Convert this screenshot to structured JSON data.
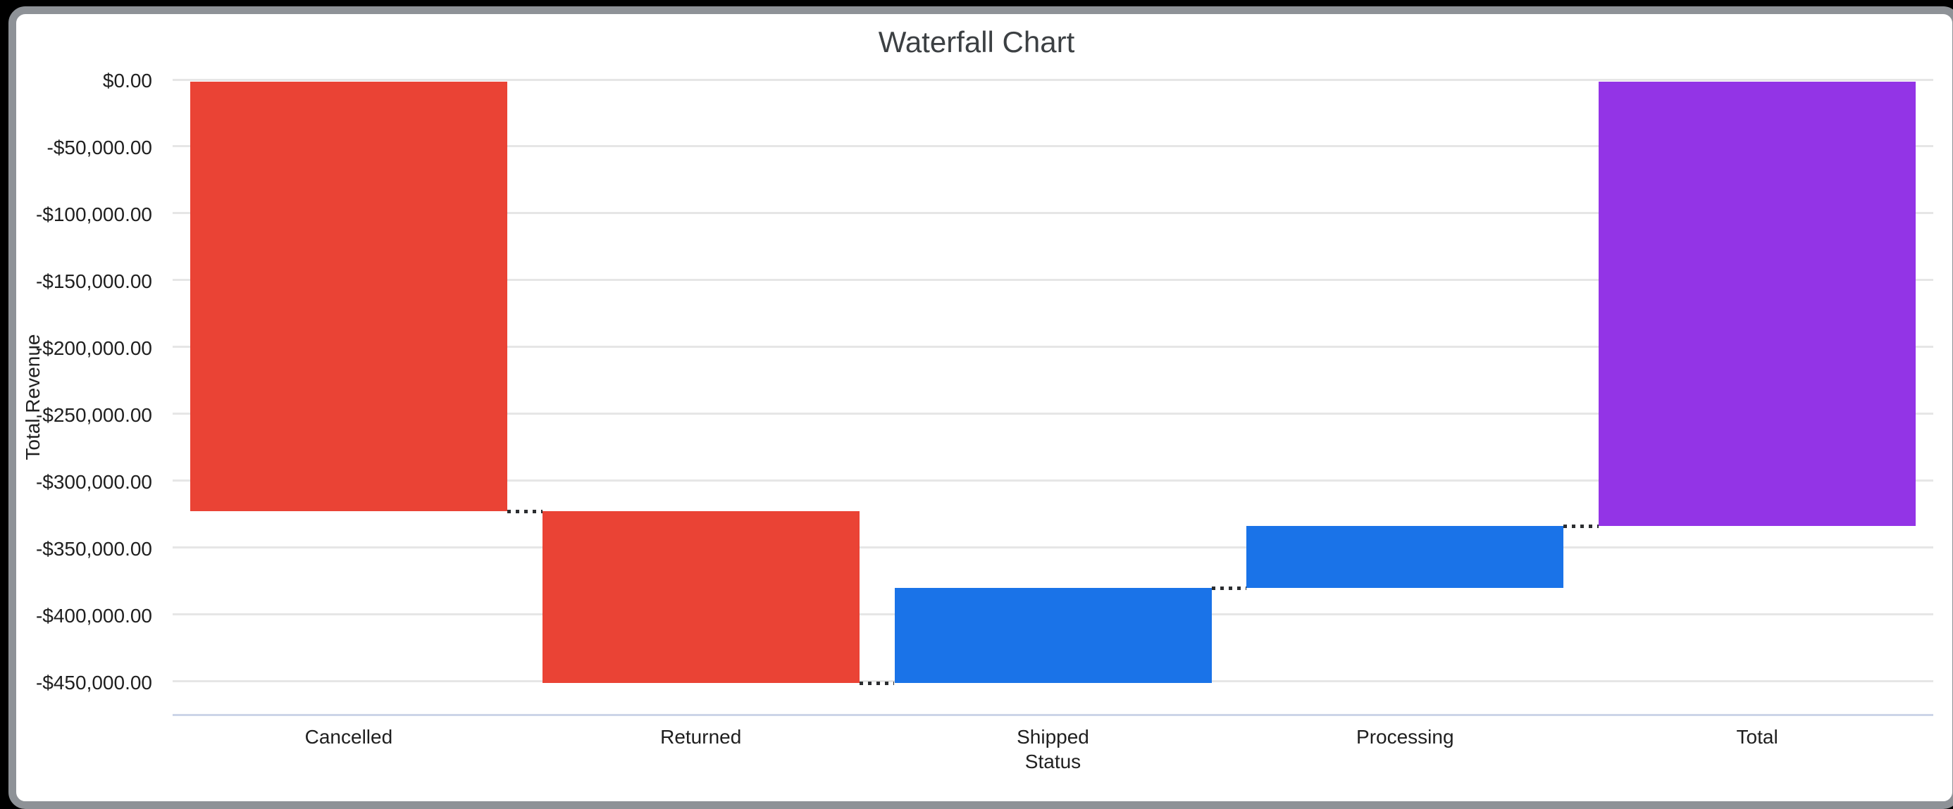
{
  "frame": {
    "backdrop_color": "#000000",
    "border_color": "#8e9297",
    "surface_color": "#ffffff"
  },
  "chart_data": {
    "type": "bar",
    "subtype": "waterfall",
    "title": "Waterfall Chart",
    "xlabel": "Status",
    "ylabel": "Total Revenue",
    "categories": [
      "Cancelled",
      "Returned",
      "Shipped",
      "Processing",
      "Total"
    ],
    "series": [
      {
        "name": "Cancelled",
        "start": 0,
        "end": -323000,
        "delta": -323000,
        "color": "#EA4335",
        "role": "decrease"
      },
      {
        "name": "Returned",
        "start": -323000,
        "end": -451500,
        "delta": -128500,
        "color": "#EA4335",
        "role": "decrease"
      },
      {
        "name": "Shipped",
        "start": -451500,
        "end": -380000,
        "delta": 71500,
        "color": "#1A73E8",
        "role": "increase"
      },
      {
        "name": "Processing",
        "start": -380000,
        "end": -334000,
        "delta": 46000,
        "color": "#1A73E8",
        "role": "increase"
      },
      {
        "name": "Total",
        "start": 0,
        "end": -334000,
        "delta": -334000,
        "color": "#9334E6",
        "role": "total"
      }
    ],
    "y_ticks": [
      {
        "value": 0,
        "label": "$0.00"
      },
      {
        "value": -50000,
        "label": "-$50,000.00"
      },
      {
        "value": -100000,
        "label": "-$100,000.00"
      },
      {
        "value": -150000,
        "label": "-$150,000.00"
      },
      {
        "value": -200000,
        "label": "-$200,000.00"
      },
      {
        "value": -250000,
        "label": "-$250,000.00"
      },
      {
        "value": -300000,
        "label": "-$300,000.00"
      },
      {
        "value": -350000,
        "label": "-$350,000.00"
      },
      {
        "value": -400000,
        "label": "-$400,000.00"
      },
      {
        "value": -450000,
        "label": "-$450,000.00"
      }
    ],
    "ylim": [
      -475000,
      0
    ],
    "grid": true,
    "legend": "none",
    "gridline_color": "#e6e6e6",
    "baseline_color": "#ccd5e8",
    "connector_color": "#2b2d30",
    "title_color": "#3c4043",
    "label_color": "#1f1f1f"
  }
}
